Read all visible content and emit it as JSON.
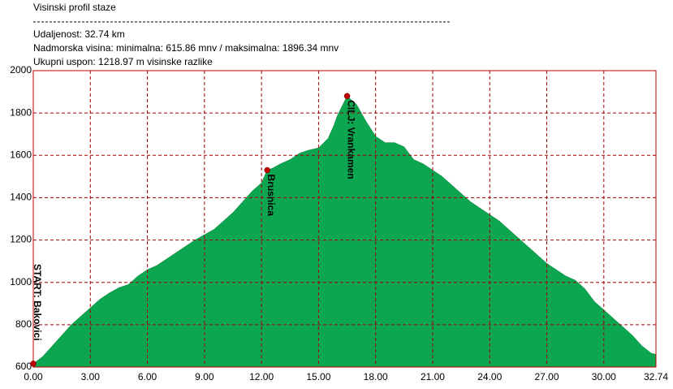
{
  "chart_data": {
    "type": "area",
    "title": "Visinski profil staze",
    "info": [
      "Udaljenost: 32.74 km",
      "Nadmorska visina:  minimalna: 615.86 mnv  /  maksimalna: 1896.34 mnv",
      "Ukupni uspon: 1218.97 m visinske razlike"
    ],
    "color": "#0ba64f",
    "x": [
      0,
      0.5,
      1,
      1.5,
      2,
      2.5,
      3,
      3.5,
      4,
      4.5,
      5,
      5.5,
      6,
      6.5,
      7,
      7.5,
      8,
      8.5,
      9,
      9.5,
      10,
      10.5,
      11,
      11.5,
      12,
      12.3,
      12.6,
      13,
      13.5,
      14,
      14.5,
      15,
      15.5,
      15.8,
      16,
      16.5,
      17,
      17.5,
      18,
      18.5,
      19,
      19.5,
      20,
      20.5,
      21,
      21.5,
      22,
      22.5,
      23,
      23.5,
      24,
      24.5,
      25,
      25.5,
      26,
      26.5,
      27,
      27.5,
      28,
      28.5,
      29,
      29.5,
      30,
      30.5,
      31,
      31.5,
      32,
      32.5,
      32.74
    ],
    "values": [
      616,
      650,
      700,
      750,
      800,
      840,
      880,
      920,
      950,
      975,
      990,
      1030,
      1060,
      1080,
      1110,
      1140,
      1170,
      1200,
      1225,
      1250,
      1290,
      1330,
      1380,
      1430,
      1470,
      1530,
      1540,
      1560,
      1580,
      1610,
      1625,
      1635,
      1680,
      1740,
      1790,
      1880,
      1840,
      1760,
      1690,
      1660,
      1660,
      1640,
      1580,
      1560,
      1530,
      1500,
      1460,
      1420,
      1380,
      1350,
      1320,
      1290,
      1250,
      1210,
      1170,
      1130,
      1090,
      1060,
      1030,
      1010,
      970,
      910,
      870,
      830,
      790,
      750,
      700,
      665,
      660
    ],
    "markers": [
      {
        "label": "START: Bakovici",
        "x": 0,
        "y": 616
      },
      {
        "label": "Brusnica",
        "x": 12.3,
        "y": 1530
      },
      {
        "label": "CILJ: Vrankamen",
        "x": 16.5,
        "y": 1880
      }
    ],
    "xlim": [
      0,
      32.74
    ],
    "ylim": [
      600,
      2000
    ],
    "xticks": [
      {
        "value": 0,
        "label": "0.00"
      },
      {
        "value": 3,
        "label": "3.00"
      },
      {
        "value": 6,
        "label": "6.00"
      },
      {
        "value": 9,
        "label": "9.00"
      },
      {
        "value": 12,
        "label": "12.00"
      },
      {
        "value": 15,
        "label": "15.00"
      },
      {
        "value": 18,
        "label": "18.00"
      },
      {
        "value": 21,
        "label": "21.00"
      },
      {
        "value": 24,
        "label": "24.00"
      },
      {
        "value": 27,
        "label": "27.00"
      },
      {
        "value": 30,
        "label": "30.00"
      },
      {
        "value": 32.74,
        "label": "32.74"
      }
    ],
    "yticks": [
      600,
      800,
      1000,
      1200,
      1400,
      1600,
      1800,
      2000
    ],
    "grid": true
  }
}
